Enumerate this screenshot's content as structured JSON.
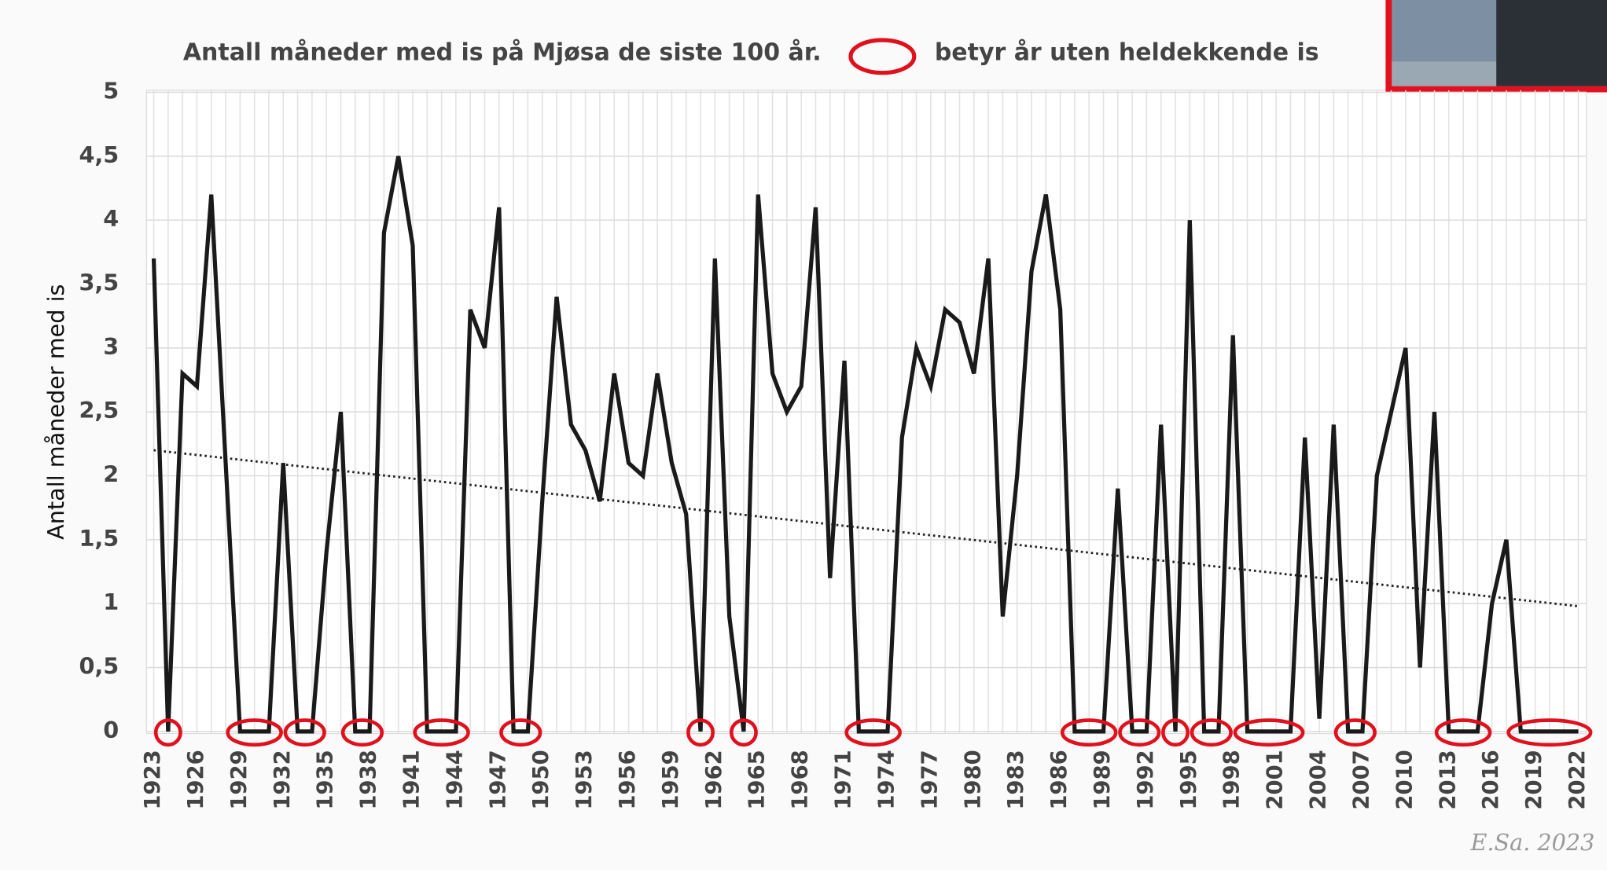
{
  "chart_data": {
    "type": "line",
    "title": "Antall måneder med is på Mjøsa de siste 100 år.",
    "legend_text": "betyr år uten heldekkende is",
    "ylabel": "Antall måneder med is",
    "signature": "E.Sa. 2023",
    "x": [
      1923,
      1924,
      1925,
      1926,
      1927,
      1928,
      1929,
      1930,
      1931,
      1932,
      1933,
      1934,
      1935,
      1936,
      1937,
      1938,
      1939,
      1940,
      1941,
      1942,
      1943,
      1944,
      1945,
      1946,
      1947,
      1948,
      1949,
      1950,
      1951,
      1952,
      1953,
      1954,
      1955,
      1956,
      1957,
      1958,
      1959,
      1960,
      1961,
      1962,
      1963,
      1964,
      1965,
      1966,
      1967,
      1968,
      1969,
      1970,
      1971,
      1972,
      1973,
      1974,
      1975,
      1976,
      1977,
      1978,
      1979,
      1980,
      1981,
      1982,
      1983,
      1984,
      1985,
      1986,
      1987,
      1988,
      1989,
      1990,
      1991,
      1992,
      1993,
      1994,
      1995,
      1996,
      1997,
      1998,
      1999,
      2000,
      2001,
      2002,
      2003,
      2004,
      2005,
      2006,
      2007,
      2008,
      2009,
      2010,
      2011,
      2012,
      2013,
      2014,
      2015,
      2016,
      2017,
      2018,
      2019,
      2020,
      2021,
      2022
    ],
    "values": [
      3.7,
      0,
      2.8,
      2.7,
      4.2,
      2.1,
      0,
      0,
      0,
      2.1,
      0,
      0,
      1.4,
      2.5,
      0,
      0,
      3.9,
      4.5,
      3.8,
      0,
      0,
      0,
      3.3,
      3.0,
      4.1,
      0,
      0,
      1.8,
      3.4,
      2.4,
      2.2,
      1.8,
      2.8,
      2.1,
      2.0,
      2.8,
      2.1,
      1.7,
      0,
      3.7,
      0.9,
      0,
      4.2,
      2.8,
      2.5,
      2.7,
      4.1,
      1.2,
      2.9,
      0,
      0,
      0,
      2.3,
      3.0,
      2.7,
      3.3,
      3.2,
      2.8,
      3.7,
      0.9,
      2.0,
      3.6,
      4.2,
      3.3,
      0,
      0,
      0,
      1.9,
      0,
      0,
      2.4,
      0,
      4.0,
      0,
      0,
      3.1,
      0,
      0,
      0,
      0,
      2.3,
      0.1,
      2.4,
      0,
      0,
      2.0,
      2.5,
      3.0,
      0.5,
      2.5,
      0,
      0,
      0,
      1.0,
      1.5,
      0,
      0,
      0,
      0,
      0
    ],
    "color": "#1a1a1a",
    "marker_color": "#e0101c",
    "trend": [
      2.2,
      0.98
    ],
    "xlim": [
      1923,
      2022
    ],
    "xticks": [
      1923,
      1926,
      1929,
      1932,
      1935,
      1938,
      1941,
      1944,
      1947,
      1950,
      1953,
      1956,
      1959,
      1962,
      1965,
      1968,
      1971,
      1974,
      1977,
      1980,
      1983,
      1986,
      1989,
      1992,
      1995,
      1998,
      2001,
      2004,
      2007,
      2010,
      2013,
      2016,
      2019,
      2022
    ],
    "ylim": [
      0,
      5
    ],
    "yticks": [
      0,
      {
        "value": 0.5,
        "label": "0,5"
      },
      1,
      {
        "value": 1.5,
        "label": "1,5"
      },
      2,
      {
        "value": 2.5,
        "label": "2,5"
      },
      3,
      {
        "value": 3.5,
        "label": "3,5"
      },
      4,
      {
        "value": 4.5,
        "label": "4,5"
      },
      5
    ],
    "grid": true
  }
}
